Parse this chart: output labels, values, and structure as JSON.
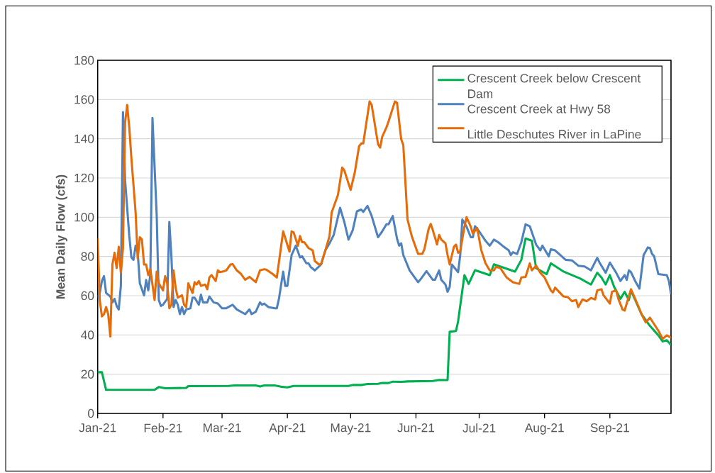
{
  "chart_data": {
    "type": "line",
    "ylabel": "Mean Daily Flow (cfs)",
    "xlim": [
      "2021-01-01",
      "2021-09-30"
    ],
    "xticks": [
      {
        "value": "2021-01-01",
        "label": "Jan-21"
      },
      {
        "value": "2021-02-01",
        "label": "Feb-21"
      },
      {
        "value": "2021-03-01",
        "label": "Mar-21"
      },
      {
        "value": "2021-04-01",
        "label": "Apr-21"
      },
      {
        "value": "2021-05-01",
        "label": "May-21"
      },
      {
        "value": "2021-06-01",
        "label": "Jun-21"
      },
      {
        "value": "2021-07-01",
        "label": "Jul-21"
      },
      {
        "value": "2021-08-01",
        "label": "Aug-21"
      },
      {
        "value": "2021-09-01",
        "label": "Sep-21"
      }
    ],
    "ylim": [
      0,
      180
    ],
    "yticks": [
      0,
      20,
      40,
      60,
      80,
      100,
      120,
      140,
      160,
      180
    ],
    "grid": "y",
    "legend": "top right",
    "line_style": "solid",
    "series": [
      {
        "name": "Crescent Creek below Crescent Dam",
        "color": "#00b050",
        "x": [
          "2021-01-01",
          "2021-01-03",
          "2021-01-05",
          "2021-01-28",
          "2021-01-30",
          "2021-02-02",
          "2021-02-12",
          "2021-02-13",
          "2021-03-04",
          "2021-03-07",
          "2021-03-17",
          "2021-03-19",
          "2021-03-21",
          "2021-03-26",
          "2021-03-29",
          "2021-04-01",
          "2021-04-04",
          "2021-04-30",
          "2021-05-02",
          "2021-05-06",
          "2021-05-09",
          "2021-05-14",
          "2021-05-16",
          "2021-05-19",
          "2021-05-21",
          "2021-05-25",
          "2021-05-28",
          "2021-06-09",
          "2021-06-12",
          "2021-06-16",
          "2021-06-17",
          "2021-06-20",
          "2021-06-21",
          "2021-06-24",
          "2021-06-26",
          "2021-06-29",
          "2021-07-06",
          "2021-07-08",
          "2021-07-18",
          "2021-07-21",
          "2021-07-23",
          "2021-07-26",
          "2021-07-28",
          "2021-08-02",
          "2021-08-04",
          "2021-08-10",
          "2021-08-14",
          "2021-08-18",
          "2021-08-23",
          "2021-08-26",
          "2021-08-28",
          "2021-08-30",
          "2021-09-01",
          "2021-09-03",
          "2021-09-06",
          "2021-09-08",
          "2021-09-10",
          "2021-09-11",
          "2021-09-16",
          "2021-09-20",
          "2021-09-24",
          "2021-09-26",
          "2021-09-28",
          "2021-09-30"
        ],
        "values": [
          21,
          21,
          12,
          12,
          13.5,
          12.8,
          13,
          13.9,
          14,
          14.3,
          14.3,
          13.7,
          14.3,
          14.3,
          13.6,
          13.3,
          14,
          14,
          14.5,
          14.5,
          15,
          15.1,
          15.5,
          15.5,
          16.2,
          16.1,
          16.3,
          16.5,
          17.1,
          17,
          41.6,
          42,
          47,
          70.5,
          66,
          73,
          70.5,
          76,
          72.3,
          78.3,
          89.2,
          88,
          74,
          71,
          76.5,
          72.3,
          70.5,
          68.7,
          65.7,
          71.7,
          69.3,
          65.7,
          70.5,
          64.5,
          58.4,
          62,
          57.8,
          62.7,
          50.6,
          44.6,
          39.8,
          36.7,
          37.3,
          34.9
        ]
      },
      {
        "name": "Crescent Creek at Hwy 58",
        "color": "#4f81bd",
        "x": [
          "2021-01-01",
          "2021-01-02",
          "2021-01-03",
          "2021-01-04",
          "2021-01-05",
          "2021-01-07",
          "2021-01-08",
          "2021-01-09",
          "2021-01-10",
          "2021-01-11",
          "2021-01-12",
          "2021-01-13",
          "2021-01-14",
          "2021-01-16",
          "2021-01-17",
          "2021-01-18",
          "2021-01-19",
          "2021-01-20",
          "2021-01-21",
          "2021-01-23",
          "2021-01-24",
          "2021-01-25",
          "2021-01-26",
          "2021-01-27",
          "2021-01-29",
          "2021-01-30",
          "2021-01-31",
          "2021-02-01",
          "2021-02-03",
          "2021-02-04",
          "2021-02-05",
          "2021-02-06",
          "2021-02-07",
          "2021-02-08",
          "2021-02-09",
          "2021-02-10",
          "2021-02-11",
          "2021-02-12",
          "2021-02-14",
          "2021-02-15",
          "2021-02-16",
          "2021-02-18",
          "2021-02-19",
          "2021-02-20",
          "2021-02-22",
          "2021-02-23",
          "2021-02-25",
          "2021-02-27",
          "2021-03-01",
          "2021-03-03",
          "2021-03-06",
          "2021-03-08",
          "2021-03-12",
          "2021-03-14",
          "2021-03-15",
          "2021-03-17",
          "2021-03-19",
          "2021-03-20",
          "2021-03-21",
          "2021-03-23",
          "2021-03-26",
          "2021-03-27",
          "2021-03-28",
          "2021-03-30",
          "2021-03-31",
          "2021-04-01",
          "2021-04-03",
          "2021-04-05",
          "2021-04-07",
          "2021-04-08",
          "2021-04-10",
          "2021-04-11",
          "2021-04-12",
          "2021-04-14",
          "2021-04-17",
          "2021-04-19",
          "2021-04-21",
          "2021-04-23",
          "2021-04-26",
          "2021-04-28",
          "2021-04-30",
          "2021-05-02",
          "2021-05-04",
          "2021-05-06",
          "2021-05-07",
          "2021-05-09",
          "2021-05-11",
          "2021-05-14",
          "2021-05-16",
          "2021-05-18",
          "2021-05-19",
          "2021-05-21",
          "2021-05-23",
          "2021-05-24",
          "2021-05-25",
          "2021-05-26",
          "2021-05-29",
          "2021-06-02",
          "2021-06-03",
          "2021-06-06",
          "2021-06-09",
          "2021-06-10",
          "2021-06-12",
          "2021-06-13",
          "2021-06-15",
          "2021-06-16",
          "2021-06-17",
          "2021-06-18",
          "2021-06-21",
          "2021-06-22",
          "2021-06-23",
          "2021-06-25",
          "2021-06-27",
          "2021-06-28",
          "2021-06-29",
          "2021-07-01",
          "2021-07-04",
          "2021-07-06",
          "2021-07-08",
          "2021-07-10",
          "2021-07-12",
          "2021-07-15",
          "2021-07-16",
          "2021-07-17",
          "2021-07-19",
          "2021-07-21",
          "2021-07-23",
          "2021-07-25",
          "2021-07-28",
          "2021-07-30",
          "2021-07-31",
          "2021-08-03",
          "2021-08-04",
          "2021-08-06",
          "2021-08-11",
          "2021-08-14",
          "2021-08-17",
          "2021-08-20",
          "2021-08-23",
          "2021-08-26",
          "2021-08-27",
          "2021-08-30",
          "2021-09-01",
          "2021-09-04",
          "2021-09-06",
          "2021-09-08",
          "2021-09-09",
          "2021-09-10",
          "2021-09-11",
          "2021-09-13",
          "2021-09-15",
          "2021-09-17",
          "2021-09-19",
          "2021-09-20",
          "2021-09-21",
          "2021-09-22",
          "2021-09-24",
          "2021-09-28",
          "2021-09-29",
          "2021-09-30"
        ],
        "values": [
          59,
          61.4,
          67.5,
          70,
          61.4,
          59.6,
          56.6,
          58.4,
          54.8,
          53,
          65,
          153.6,
          119,
          90.4,
          79.5,
          78.3,
          85.5,
          82,
          66.3,
          60.2,
          68,
          62.7,
          71,
          150.6,
          101,
          57.8,
          54.8,
          55.4,
          58.4,
          97.6,
          79.5,
          54.2,
          57.8,
          55.4,
          50.6,
          54.2,
          50.6,
          53,
          53.6,
          59,
          59,
          55.4,
          60.5,
          56.6,
          56.6,
          59.6,
          56.6,
          56,
          53.6,
          53.6,
          55.4,
          53,
          50.6,
          53,
          50.6,
          51.8,
          56.6,
          55.4,
          56,
          54.2,
          53.6,
          53.6,
          58.4,
          72.3,
          65,
          65,
          80.7,
          85.5,
          79.5,
          80.1,
          76.5,
          76.5,
          74.7,
          72.9,
          75.9,
          83.1,
          86.7,
          91,
          104.8,
          97.6,
          88.6,
          93.4,
          103,
          103.9,
          102.7,
          105.8,
          100.6,
          89.8,
          92.8,
          96.4,
          96.4,
          100.6,
          89.2,
          85.5,
          86.7,
          80.7,
          72.9,
          66.9,
          68.1,
          72.5,
          68.1,
          68.1,
          72.9,
          68.1,
          65.7,
          62,
          64.5,
          75.9,
          72,
          80.7,
          98.8,
          95.2,
          89.8,
          89.8,
          95.4,
          92.8,
          88,
          85.5,
          88.6,
          87.3,
          85.5,
          83.1,
          80.7,
          82.2,
          81.3,
          87.3,
          96.4,
          95.4,
          86.1,
          83.1,
          85.5,
          80.1,
          83.7,
          83.1,
          78.3,
          78,
          75.3,
          74.9,
          72.9,
          79.3,
          77.1,
          71.7,
          76.9,
          71.7,
          67.5,
          70.5,
          68.1,
          72.9,
          72,
          67.5,
          63.6,
          80.7,
          84.6,
          84.3,
          81.3,
          80.1,
          71,
          70.5,
          67.5,
          60.8
        ]
      },
      {
        "name": "Little Deschutes River in LaPine",
        "color": "#e46c0a",
        "x": [
          "2021-01-01",
          "2021-01-02",
          "2021-01-03",
          "2021-01-04",
          "2021-01-05",
          "2021-01-06",
          "2021-01-07",
          "2021-01-08",
          "2021-01-09",
          "2021-01-10",
          "2021-01-11",
          "2021-01-12",
          "2021-01-13",
          "2021-01-14",
          "2021-01-15",
          "2021-01-16",
          "2021-01-17",
          "2021-01-19",
          "2021-01-20",
          "2021-01-21",
          "2021-01-22",
          "2021-01-23",
          "2021-01-24",
          "2021-01-25",
          "2021-01-26",
          "2021-01-28",
          "2021-01-29",
          "2021-01-30",
          "2021-02-01",
          "2021-02-02",
          "2021-02-03",
          "2021-02-04",
          "2021-02-05",
          "2021-02-06",
          "2021-02-07",
          "2021-02-08",
          "2021-02-10",
          "2021-02-11",
          "2021-02-12",
          "2021-02-13",
          "2021-02-15",
          "2021-02-16",
          "2021-02-17",
          "2021-02-18",
          "2021-02-19",
          "2021-02-21",
          "2021-02-22",
          "2021-02-23",
          "2021-02-24",
          "2021-02-26",
          "2021-02-27",
          "2021-02-28",
          "2021-03-02",
          "2021-03-03",
          "2021-03-05",
          "2021-03-06",
          "2021-03-08",
          "2021-03-10",
          "2021-03-12",
          "2021-03-14",
          "2021-03-17",
          "2021-03-19",
          "2021-03-21",
          "2021-03-22",
          "2021-03-25",
          "2021-03-27",
          "2021-03-30",
          "2021-04-02",
          "2021-04-03",
          "2021-04-04",
          "2021-04-06",
          "2021-04-07",
          "2021-04-08",
          "2021-04-09",
          "2021-04-11",
          "2021-04-13",
          "2021-04-14",
          "2021-04-16",
          "2021-04-17",
          "2021-04-19",
          "2021-04-21",
          "2021-04-22",
          "2021-04-25",
          "2021-04-27",
          "2021-04-28",
          "2021-05-01",
          "2021-05-03",
          "2021-05-05",
          "2021-05-06",
          "2021-05-07",
          "2021-05-10",
          "2021-05-11",
          "2021-05-14",
          "2021-05-15",
          "2021-05-16",
          "2021-05-18",
          "2021-05-19",
          "2021-05-22",
          "2021-05-23",
          "2021-05-25",
          "2021-05-26",
          "2021-05-28",
          "2021-05-30",
          "2021-06-02",
          "2021-06-04",
          "2021-06-05",
          "2021-06-07",
          "2021-06-08",
          "2021-06-09",
          "2021-06-11",
          "2021-06-12",
          "2021-06-13",
          "2021-06-15",
          "2021-06-16",
          "2021-06-17",
          "2021-06-19",
          "2021-06-20",
          "2021-06-21",
          "2021-06-22",
          "2021-06-24",
          "2021-06-25",
          "2021-06-27",
          "2021-06-28",
          "2021-06-30",
          "2021-07-02",
          "2021-07-04",
          "2021-07-06",
          "2021-07-08",
          "2021-07-09",
          "2021-07-11",
          "2021-07-14",
          "2021-07-17",
          "2021-07-20",
          "2021-07-21",
          "2021-07-23",
          "2021-07-25",
          "2021-07-26",
          "2021-07-28",
          "2021-07-30",
          "2021-08-01",
          "2021-08-04",
          "2021-08-05",
          "2021-08-06",
          "2021-08-10",
          "2021-08-12",
          "2021-08-14",
          "2021-08-16",
          "2021-08-17",
          "2021-08-19",
          "2021-08-21",
          "2021-08-23",
          "2021-08-25",
          "2021-08-26",
          "2021-08-28",
          "2021-08-29",
          "2021-09-01",
          "2021-09-02",
          "2021-09-04",
          "2021-09-05",
          "2021-09-07",
          "2021-09-08",
          "2021-09-11",
          "2021-09-13",
          "2021-09-16",
          "2021-09-18",
          "2021-09-20",
          "2021-09-24",
          "2021-09-26",
          "2021-09-28",
          "2021-09-30"
        ],
        "values": [
          89.2,
          57.8,
          49.4,
          50.6,
          54.2,
          50.6,
          39.2,
          75.9,
          81.9,
          74.1,
          84.9,
          71.7,
          84.3,
          148.2,
          157.2,
          145.8,
          130.1,
          102.4,
          78.9,
          89.8,
          88.6,
          75.9,
          75.9,
          70.5,
          73.5,
          57.8,
          72.3,
          66.3,
          62.7,
          69.9,
          66.3,
          53.6,
          55.4,
          72.9,
          63.9,
          59,
          60.2,
          55.4,
          54.2,
          66.3,
          61.4,
          66.9,
          65.7,
          67.5,
          65,
          65.7,
          63.3,
          69.3,
          70.5,
          67.5,
          72.9,
          72,
          72.5,
          72.9,
          75.9,
          76.1,
          72.9,
          71.1,
          68.1,
          69.6,
          66.9,
          72.9,
          73.5,
          73.3,
          71.1,
          69.3,
          92.8,
          82.5,
          92.8,
          92.2,
          85.5,
          90.4,
          87.3,
          87.3,
          84.3,
          83.1,
          77.7,
          75.9,
          76.1,
          83.1,
          90.4,
          102.4,
          111.4,
          125.3,
          123.9,
          113.9,
          122.9,
          136.1,
          137.6,
          137.6,
          159,
          157.2,
          137.3,
          135.5,
          141,
          145.8,
          148.8,
          159,
          158.4,
          139.8,
          136.7,
          98.8,
          90.4,
          81.3,
          81.3,
          83.7,
          94,
          96.6,
          93.4,
          86.1,
          91,
          88.6,
          86.7,
          80.7,
          75.9,
          84.9,
          86.1,
          81.9,
          82.5,
          95.2,
          100,
          95.2,
          91.6,
          94.6,
          83.1,
          76.5,
          72.9,
          72.9,
          74.7,
          74.1,
          69.3,
          66.9,
          66,
          69.3,
          69.6,
          76.5,
          72.9,
          75.3,
          71.7,
          69.3,
          62.7,
          61.7,
          64.1,
          59.6,
          59.3,
          57.2,
          57.8,
          54.2,
          58.1,
          57.2,
          58.8,
          58.1,
          62.7,
          63.3,
          60.2,
          56,
          62,
          62.7,
          58.4,
          53,
          52.4,
          63.3,
          58.4,
          50.6,
          46.4,
          48.8,
          42.2,
          38,
          39.8,
          38.6
        ]
      }
    ]
  }
}
